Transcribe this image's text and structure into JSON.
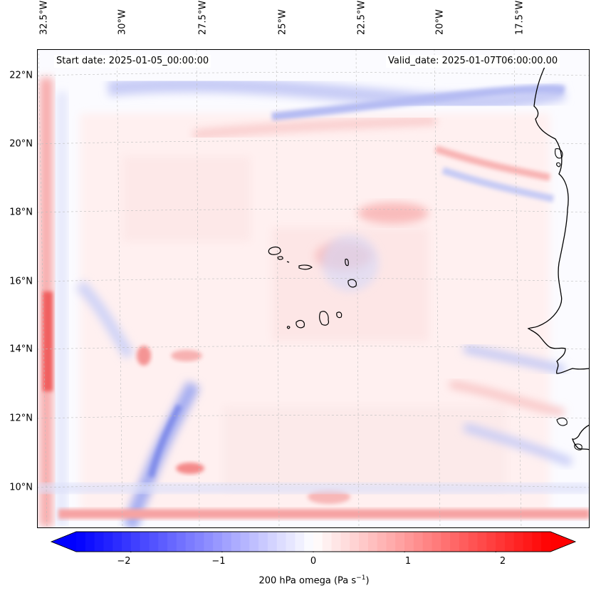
{
  "map": {
    "start_date_text": "Start date: 2025-01-05_00:00:00",
    "valid_date_text": "Valid_date: 2025-01-07T06:00:00.00",
    "field": "200 hPa omega",
    "region": "Cabo Verde and West African coast"
  },
  "longitude_labels": [
    "32.5°W",
    "30°W",
    "27.5°W",
    "25°W",
    "22.5°W",
    "20°W",
    "17.5°W"
  ],
  "latitude_labels": [
    "22°N",
    "20°N",
    "18°N",
    "16°N",
    "14°N",
    "12°N",
    "10°N"
  ],
  "colorbar": {
    "label_prefix": "200 hPa omega (Pa s",
    "label_sup": "−1",
    "label_suffix": ")",
    "ticks": [
      "−2",
      "−1",
      "0",
      "1",
      "2"
    ],
    "vmin": -2.6,
    "vmax": 2.6,
    "colormap": "bwr",
    "low_color": "#0000ff",
    "mid_color": "#ffffff",
    "high_color": "#ff0000"
  },
  "colors": {
    "coastline": "#000000",
    "grid": "#b0b0b0"
  }
}
